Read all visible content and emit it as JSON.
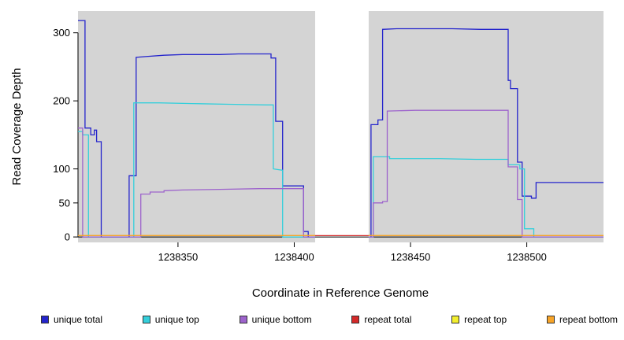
{
  "chart_data": {
    "type": "line",
    "xlabel": "Coordinate in Reference Genome",
    "ylabel": "Read Coverage Depth",
    "xlim": [
      1238307,
      1238533
    ],
    "ylim": [
      -8,
      332
    ],
    "x_ticks": [
      1238350,
      1238400,
      1238450,
      1238500
    ],
    "y_ticks": [
      0,
      50,
      100,
      200,
      300
    ],
    "plot_bg": "#d4d4d4",
    "grid": false,
    "legend_position": "bottom",
    "gap_band": {
      "from": 1238409,
      "to": 1238432,
      "color": "#ffffff"
    },
    "series": [
      {
        "name": "unique total",
        "color": "#2424cc",
        "segments": [
          [
            [
              1238307,
              318
            ],
            [
              1238310,
              318
            ],
            [
              1238310,
              160
            ],
            [
              1238312.5,
              160
            ],
            [
              1238312.5,
              150
            ],
            [
              1238314,
              150
            ],
            [
              1238314,
              157
            ],
            [
              1238315,
              157
            ],
            [
              1238315,
              140
            ],
            [
              1238317,
              140
            ],
            [
              1238317,
              0
            ],
            [
              1238329,
              0
            ],
            [
              1238329,
              90
            ],
            [
              1238332,
              90
            ],
            [
              1238332,
              264
            ],
            [
              1238336,
              265
            ],
            [
              1238344,
              267
            ],
            [
              1238352,
              268
            ],
            [
              1238368,
              268
            ],
            [
              1238376,
              269
            ],
            [
              1238390,
              269
            ],
            [
              1238390,
              263
            ],
            [
              1238392,
              263
            ],
            [
              1238392,
              170
            ],
            [
              1238395,
              170
            ],
            [
              1238395,
              75
            ],
            [
              1238404,
              75
            ],
            [
              1238404,
              8
            ],
            [
              1238406,
              8
            ],
            [
              1238406,
              0
            ],
            [
              1238409,
              0
            ]
          ],
          [
            [
              1238432,
              0
            ],
            [
              1238433,
              0
            ],
            [
              1238433,
              165
            ],
            [
              1238436,
              165
            ],
            [
              1238436,
              172
            ],
            [
              1238438,
              172
            ],
            [
              1238438,
              305
            ],
            [
              1238444,
              306
            ],
            [
              1238456,
              306
            ],
            [
              1238468,
              306
            ],
            [
              1238480,
              305
            ],
            [
              1238492,
              305
            ],
            [
              1238492,
              230
            ],
            [
              1238493,
              230
            ],
            [
              1238493,
              218
            ],
            [
              1238496,
              218
            ],
            [
              1238496,
              110
            ],
            [
              1238498,
              110
            ],
            [
              1238498,
              60
            ],
            [
              1238502,
              60
            ],
            [
              1238502,
              57
            ],
            [
              1238504,
              57
            ],
            [
              1238504,
              80
            ],
            [
              1238533,
              80
            ]
          ]
        ]
      },
      {
        "name": "unique top",
        "color": "#34cfdb",
        "segments": [
          [
            [
              1238307,
              155
            ],
            [
              1238309,
              155
            ],
            [
              1238309,
              150
            ],
            [
              1238311.5,
              150
            ],
            [
              1238311.5,
              0
            ],
            [
              1238331,
              0
            ],
            [
              1238331,
              197
            ],
            [
              1238342,
              197
            ],
            [
              1238356,
              196
            ],
            [
              1238372,
              195
            ],
            [
              1238388,
              194
            ],
            [
              1238391,
              194
            ],
            [
              1238391,
              100
            ],
            [
              1238395,
              98
            ],
            [
              1238395,
              0
            ],
            [
              1238409,
              0
            ]
          ],
          [
            [
              1238432,
              0
            ],
            [
              1238434,
              0
            ],
            [
              1238434,
              118
            ],
            [
              1238441,
              118
            ],
            [
              1238441,
              115
            ],
            [
              1238463,
              115
            ],
            [
              1238478,
              114
            ],
            [
              1238492,
              114
            ],
            [
              1238492,
              106
            ],
            [
              1238497,
              106
            ],
            [
              1238497,
              100
            ],
            [
              1238499,
              100
            ],
            [
              1238499,
              12
            ],
            [
              1238503,
              12
            ],
            [
              1238503,
              0
            ],
            [
              1238533,
              0
            ]
          ]
        ]
      },
      {
        "name": "unique bottom",
        "color": "#9d63cc",
        "segments": [
          [
            [
              1238307,
              160
            ],
            [
              1238309,
              160
            ],
            [
              1238309,
              0
            ],
            [
              1238334,
              0
            ],
            [
              1238334,
              63
            ],
            [
              1238338,
              63
            ],
            [
              1238338,
              66
            ],
            [
              1238344,
              66
            ],
            [
              1238344,
              68
            ],
            [
              1238352,
              69
            ],
            [
              1238368,
              70
            ],
            [
              1238385,
              71
            ],
            [
              1238404,
              71
            ],
            [
              1238404,
              0
            ],
            [
              1238409,
              0
            ]
          ],
          [
            [
              1238432,
              0
            ],
            [
              1238434,
              0
            ],
            [
              1238434,
              50
            ],
            [
              1238438,
              50
            ],
            [
              1238438,
              52
            ],
            [
              1238440,
              52
            ],
            [
              1238440,
              185
            ],
            [
              1238452,
              186
            ],
            [
              1238470,
              186
            ],
            [
              1238492,
              186
            ],
            [
              1238492,
              103
            ],
            [
              1238496,
              103
            ],
            [
              1238496,
              55
            ],
            [
              1238498,
              55
            ],
            [
              1238498,
              0
            ],
            [
              1238533,
              0
            ]
          ]
        ]
      },
      {
        "name": "repeat total",
        "color": "#d42a2a",
        "segments": [
          [
            [
              1238307,
              2
            ],
            [
              1238533,
              2
            ]
          ]
        ]
      },
      {
        "name": "repeat top",
        "color": "#f2ee2e",
        "segments": [
          [
            [
              1238307,
              2
            ],
            [
              1238409,
              2
            ]
          ],
          [
            [
              1238432,
              2
            ],
            [
              1238533,
              2
            ]
          ]
        ]
      },
      {
        "name": "repeat bottom",
        "color": "#f7a428",
        "segments": [
          [
            [
              1238307,
              2
            ],
            [
              1238409,
              2
            ]
          ],
          [
            [
              1238432,
              2
            ],
            [
              1238533,
              2
            ]
          ]
        ]
      }
    ]
  }
}
